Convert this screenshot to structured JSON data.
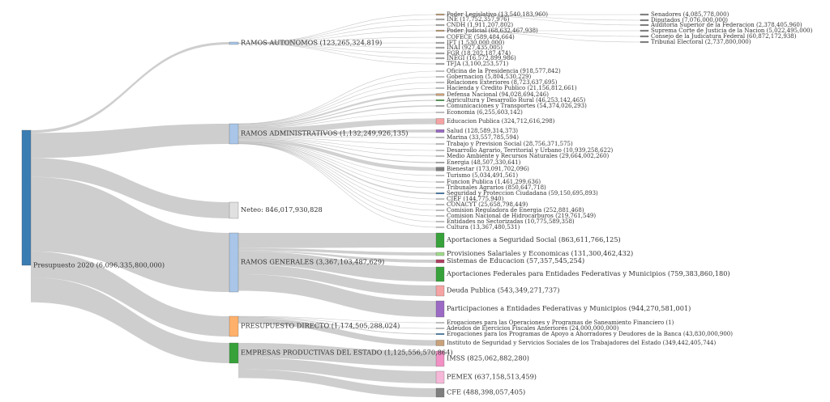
{
  "colors": {
    "link": "#bdbdbd",
    "root": "#3a7db3",
    "lightblue": "#a9c6e8",
    "grey": "#9e9e9e",
    "orange": "#ffb06a",
    "green": "#37a13a",
    "pink": "#f5a3a3",
    "purple": "#9b6ac4",
    "magenta": "#f28fc4",
    "lightpink": "#f6b8d8",
    "darkgrey": "#7f7f7f",
    "tan": "#c9a17a",
    "lightgreen": "#9fdb8a"
  },
  "nodes": {
    "root": {
      "label": "Presupuesto 2020 (6,096,335,800,000)"
    },
    "ramos_autonomos": {
      "label": "RAMOS AUTONOMOS (123,265,324,819)"
    },
    "ramos_admin": {
      "label": "RAMOS ADMINISTRATIVOS (1,132,249,926,135)"
    },
    "neteo": {
      "label": "Neteo: 846,017,930,828"
    },
    "ramos_generales": {
      "label": "RAMOS GENERALES (3,367,103,487,629)"
    },
    "presupuesto_directo": {
      "label": "PRESUPUESTO DIRECTO (1,174,505,288,024)"
    },
    "empresas": {
      "label": "EMPRESAS PRODUCTIVAS DEL ESTADO (1,125,556,570,864)"
    }
  },
  "autonomos_items": [
    {
      "label": "Poder Legislativo (13,540,183,960)",
      "color": "#c9a17a"
    },
    {
      "label": "INE (17,752,357,976)",
      "color": "#bbbbbb"
    },
    {
      "label": "CNDH (1,911,207,802)",
      "color": "#bbbbbb"
    },
    {
      "label": "Poder Judicial (68,632,467,938)",
      "color": "#c9a17a"
    },
    {
      "label": "COFECE (589,484,664)",
      "color": "#bbbbbb"
    },
    {
      "label": "IFT (1,530,000,000)",
      "color": "#bbbbbb"
    },
    {
      "label": "INAI (927,435,005)",
      "color": "#bbbbbb"
    },
    {
      "label": "FGR (18,202,187,474)",
      "color": "#bbbbbb"
    },
    {
      "label": "INEGI (16,572,899,986)",
      "color": "#bbbbbb"
    },
    {
      "label": "TFJA (3,100,253,571)",
      "color": "#bbbbbb"
    }
  ],
  "sub_items": [
    {
      "label": "Senadores (4,085,778,000)"
    },
    {
      "label": "Diputados (7,076,000,000)"
    },
    {
      "label": "Auditoria Superior de la Federacion (2,378,405,960)"
    },
    {
      "label": "Suprema Corte de Justicia de la Nacion (5,022,495,000)"
    },
    {
      "label": "Consejo de la Judicatura Federal (60,872,172,938)"
    },
    {
      "label": "Tribunal Electoral (2,737,800,000)"
    }
  ],
  "admin_items": [
    {
      "label": "Oficina de la Presidencia (918,577,842)",
      "color": "#bbbbbb"
    },
    {
      "label": "Gobernacion (5,804,530,229)",
      "color": "#bbbbbb"
    },
    {
      "label": "Relaciones Exteriores (8,723,637,695)",
      "color": "#bbbbbb"
    },
    {
      "label": "Hacienda y Credito Publico (21,156,812,661)",
      "color": "#bbbbbb"
    },
    {
      "label": "Defensa Nacional (94,028,694,246)",
      "color": "#c9a17a"
    },
    {
      "label": "Agricultura y Desarrollo Rural (46,253,142,465)",
      "color": "#37a13a"
    },
    {
      "label": "Comunicaciones y Transportes (54,374,026,293)",
      "color": "#bbbbbb"
    },
    {
      "label": "Economia (6,255,603,142)",
      "color": "#bbbbbb"
    },
    {
      "label": "Educacion Publica (324,712,616,298)",
      "color": "#f5a3a3"
    },
    {
      "label": "Salud (128,589,314,373)",
      "color": "#9b6ac4"
    },
    {
      "label": "Marina (33,557,785,594)",
      "color": "#bbbbbb"
    },
    {
      "label": "Trabajo y Prevision Social (28,756,371,575)",
      "color": "#bbbbbb"
    },
    {
      "label": "Desarrollo Agrario, Territorial y Urbano (10,939,258,622)",
      "color": "#bbbbbb"
    },
    {
      "label": "Medio Ambiente y Recursos Naturales (29,664,002,260)",
      "color": "#bbbbbb"
    },
    {
      "label": "Energia (48,507,330,641)",
      "color": "#bbbbbb"
    },
    {
      "label": "Bienestar (173,091,702,096)",
      "color": "#7f7f7f"
    },
    {
      "label": "Turismo (5,034,491,561)",
      "color": "#bbbbbb"
    },
    {
      "label": "Funcion Publica (1,461,299,636)",
      "color": "#bbbbbb"
    },
    {
      "label": "Tribunales Agrarios (850,647,718)",
      "color": "#bbbbbb"
    },
    {
      "label": "Seguridad y Proteccion Ciudadana (59,150,695,893)",
      "color": "#3a7db3"
    },
    {
      "label": "CJEF (144,775,940)",
      "color": "#bbbbbb"
    },
    {
      "label": "CONACYT (25,658,798,449)",
      "color": "#bbbbbb"
    },
    {
      "label": "Comision Reguladora de Energia (252,881,468)",
      "color": "#bbbbbb"
    },
    {
      "label": "Comision Nacional de Hidrocarburos (219,761,549)",
      "color": "#bbbbbb"
    },
    {
      "label": "Entidades no Sectorizadas (10,775,589,358)",
      "color": "#bbbbbb"
    },
    {
      "label": "Cultura (13,367,480,531)",
      "color": "#bbbbbb"
    }
  ],
  "generales_items": [
    {
      "label": "Aportaciones a Seguridad Social (863,611,766,125)",
      "color": "#37a13a"
    },
    {
      "label": "Provisiones Salariales y Economicas (131,300,462,432)",
      "color": "#9fdb8a"
    },
    {
      "label": "Sistemas de Educacion (57,357,545,254)",
      "color": "#b04060"
    },
    {
      "label": "Aportaciones Federales para Entidades Federativas y Municipios (759,383,860,180)",
      "color": "#37a13a"
    },
    {
      "label": "Deuda Publica (543,349,271,737)",
      "color": "#f5a3a3"
    },
    {
      "label": "Participaciones a Entidades Federativas y Municipios (944,270,581,001)",
      "color": "#9b6ac4"
    }
  ],
  "directo_items": [
    {
      "label": "Erogaciones para las Operaciones y Programas de Saneamiento Financiero (1)",
      "color": "#bbbbbb"
    },
    {
      "label": "Adeudos de Ejercicios Fiscales Anteriores (24,000,000,000)",
      "color": "#bbbbbb"
    },
    {
      "label": "Erogaciones para los Programas de Apoyo a Ahorradores y Deudores de la Banca (43,830,000,900)",
      "color": "#3a7db3"
    },
    {
      "label": "Instituto de Seguridad y Servicios Sociales de los Trabajadores del Estado (349,442,405,744)",
      "color": "#c9a17a"
    }
  ],
  "empresas_items": [
    {
      "label": "IMSS (825,062,882,280)",
      "color": "#f28fc4"
    },
    {
      "label": "PEMEX (637,158,513,459)",
      "color": "#f6b8d8"
    },
    {
      "label": "CFE (488,398,057,405)",
      "color": "#7f7f7f"
    }
  ]
}
